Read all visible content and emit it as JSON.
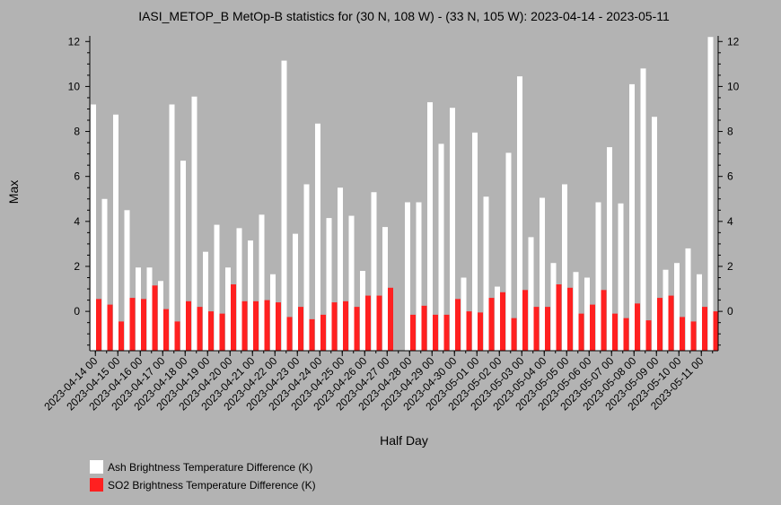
{
  "chart_data": {
    "type": "bar",
    "title": "IASI_METOP_B MetOp-B statistics for (30 N, 108 W) - (33 N, 105 W): 2023-04-14 - 2023-05-11",
    "xlabel": "Half Day",
    "ylabel": "Max",
    "ylim": [
      -1.75,
      12.25
    ],
    "yticks": [
      0,
      2,
      4,
      6,
      8,
      10,
      12
    ],
    "grid": false,
    "legend_placement": "bottom-left",
    "x_tick_labels": [
      "2023-04-14 00",
      "2023-04-15 00",
      "2023-04-16 00",
      "2023-04-17 00",
      "2023-04-18 00",
      "2023-04-19 00",
      "2023-04-20 00",
      "2023-04-21 00",
      "2023-04-22 00",
      "2023-04-23 00",
      "2023-04-24 00",
      "2023-04-25 00",
      "2023-04-26 00",
      "2023-04-27 00",
      "2023-04-28 00",
      "2023-04-29 00",
      "2023-04-30 00",
      "2023-05-01 00",
      "2023-05-02 00",
      "2023-05-03 00",
      "2023-05-04 00",
      "2023-05-05 00",
      "2023-05-06 00",
      "2023-05-07 00",
      "2023-05-08 00",
      "2023-05-09 00",
      "2023-05-10 00",
      "2023-05-11 00"
    ],
    "series": [
      {
        "name": "Ash Brightness Temperature Difference (K)",
        "color": "#ffffff",
        "values": [
          9.2,
          5.0,
          8.75,
          4.5,
          1.95,
          1.95,
          1.35,
          9.2,
          6.7,
          9.55,
          2.65,
          3.85,
          1.95,
          3.7,
          3.15,
          4.3,
          1.65,
          11.15,
          3.45,
          5.65,
          8.35,
          4.15,
          5.5,
          4.25,
          1.8,
          5.3,
          3.75,
          null,
          4.85,
          4.85,
          9.3,
          7.45,
          9.05,
          1.5,
          7.95,
          5.1,
          1.1,
          7.05,
          10.45,
          3.3,
          5.05,
          2.15,
          5.65,
          1.75,
          1.5,
          4.85,
          7.3,
          4.8,
          10.1,
          10.8,
          8.65,
          1.85,
          2.15,
          2.8,
          1.65,
          12.2
        ]
      },
      {
        "name": "SO2 Brightness Temperature Difference (K)",
        "color": "#ff2020",
        "values": [
          0.55,
          0.3,
          -0.45,
          0.6,
          0.55,
          1.15,
          0.1,
          -0.45,
          0.45,
          0.2,
          0.0,
          -0.1,
          1.2,
          0.45,
          0.45,
          0.5,
          0.4,
          -0.25,
          0.2,
          -0.35,
          -0.15,
          0.4,
          0.45,
          0.2,
          0.7,
          0.7,
          1.05,
          null,
          -0.15,
          0.25,
          -0.15,
          -0.15,
          0.55,
          0.0,
          -0.05,
          0.6,
          0.85,
          -0.3,
          0.95,
          0.2,
          0.2,
          1.2,
          1.05,
          -0.1,
          0.3,
          0.95,
          -0.1,
          -0.3,
          0.35,
          -0.4,
          0.6,
          0.7,
          -0.25,
          -0.45,
          0.2,
          0.0
        ]
      }
    ]
  }
}
